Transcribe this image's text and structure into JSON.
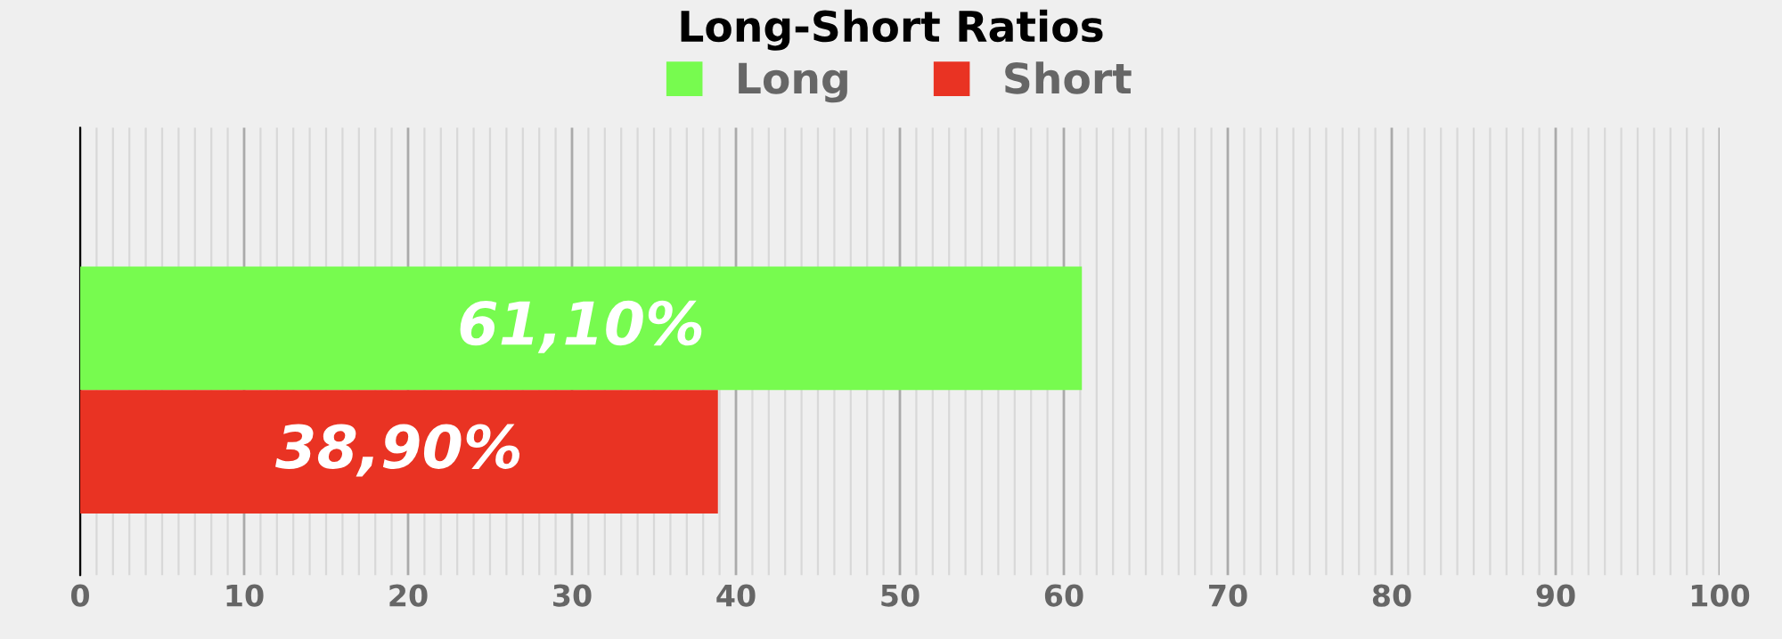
{
  "chart_data": {
    "type": "bar",
    "title": "Long-Short Ratios",
    "orientation": "horizontal",
    "categories": [
      null
    ],
    "series": [
      {
        "name": "Long",
        "color": "#77fb4f",
        "values": [
          61.1
        ],
        "value_labels": [
          "61,10%"
        ]
      },
      {
        "name": "Short",
        "color": "#e93323",
        "values": [
          38.9
        ],
        "value_labels": [
          "38,90%"
        ]
      }
    ],
    "xlim": [
      0,
      100
    ],
    "xticks": [
      0,
      10,
      20,
      30,
      40,
      50,
      60,
      70,
      80,
      90,
      100
    ],
    "grid": "x",
    "legend": "top"
  }
}
